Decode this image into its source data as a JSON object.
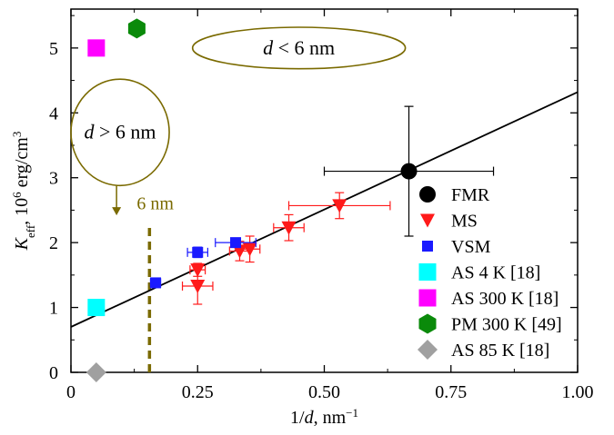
{
  "chart_data": {
    "type": "scatter",
    "title": "",
    "xlabel": {
      "main": "1/",
      "italic": "d",
      "unit": ", nm",
      "sup": "−1"
    },
    "ylabel": {
      "italic": "K",
      "sub": "eff",
      "unit": ", 10",
      "sup": "6",
      "unit2": " erg/cm",
      "sup2": "3"
    },
    "xlim": [
      0,
      1.0
    ],
    "ylim": [
      0,
      5.6
    ],
    "xticks": [
      {
        "v": 0,
        "label": "0"
      },
      {
        "v": 0.25,
        "label": "0.25"
      },
      {
        "v": 0.5,
        "label": "0.50"
      },
      {
        "v": 0.75,
        "label": "0.75"
      },
      {
        "v": 1.0,
        "label": "1.00"
      }
    ],
    "yticks": [
      {
        "v": 0,
        "label": "0"
      },
      {
        "v": 1,
        "label": "1"
      },
      {
        "v": 2,
        "label": "2"
      },
      {
        "v": 3,
        "label": "3"
      },
      {
        "v": 4,
        "label": "4"
      },
      {
        "v": 5,
        "label": "5"
      }
    ],
    "grid": false,
    "legend_position": "bottom-right",
    "series": [
      {
        "name": "FMR",
        "marker": "circle",
        "color": "#000000",
        "points": [
          {
            "x": 0.667,
            "y": 3.1,
            "xerr": 0.167,
            "yerr": 1.0
          }
        ]
      },
      {
        "name": "MS",
        "marker": "triangle-down",
        "color": "#ff1a1a",
        "points": [
          {
            "x": 0.25,
            "y": 1.33,
            "xerr": 0.03,
            "yerr": 0.28
          },
          {
            "x": 0.25,
            "y": 1.58,
            "xerr": 0.015,
            "yerr": 0.1
          },
          {
            "x": 0.333,
            "y": 1.87,
            "xerr": 0.02,
            "yerr": 0.15
          },
          {
            "x": 0.353,
            "y": 1.9,
            "xerr": 0.02,
            "yerr": 0.2
          },
          {
            "x": 0.43,
            "y": 2.23,
            "xerr": 0.03,
            "yerr": 0.2
          },
          {
            "x": 0.53,
            "y": 2.57,
            "xerr": 0.1,
            "yerr": 0.2
          }
        ]
      },
      {
        "name": "VSM",
        "marker": "square",
        "color": "#1a1aff",
        "points": [
          {
            "x": 0.167,
            "y": 1.38,
            "xerr": 0.01,
            "yerr": 0.05
          },
          {
            "x": 0.25,
            "y": 1.85,
            "xerr": 0.02,
            "yerr": 0.08
          },
          {
            "x": 0.325,
            "y": 2.0,
            "xerr": 0.04,
            "yerr": 0.05
          }
        ]
      },
      {
        "name": "AS 4 K [18]",
        "marker": "square-large",
        "color": "#00ffff",
        "points": [
          {
            "x": 0.05,
            "y": 1.0
          }
        ]
      },
      {
        "name": "AS 300 K [18]",
        "marker": "square-large",
        "color": "#ff00ff",
        "points": [
          {
            "x": 0.05,
            "y": 5.0
          }
        ]
      },
      {
        "name": "PM 300 K [49]",
        "marker": "hexagon",
        "color": "#0a8a0a",
        "points": [
          {
            "x": 0.13,
            "y": 5.3
          }
        ]
      },
      {
        "name": "AS 85 K [18]",
        "marker": "diamond",
        "color": "#a0a0a0",
        "points": [
          {
            "x": 0.05,
            "y": 0.0
          }
        ]
      }
    ],
    "fit_line": {
      "x1": 0,
      "y1": 0.7,
      "x2": 1.0,
      "y2": 4.32
    },
    "annotations": [
      {
        "type": "dashed-vline",
        "x": 0.155,
        "y_from": 0,
        "y_to": 2.3,
        "label": "6 nm",
        "color": "#7a6a00"
      },
      {
        "type": "ellipse",
        "cx": 0.45,
        "cy": 5.0,
        "rx": 0.21,
        "ry": 0.32,
        "label_italic": "d",
        "label_rest": " < 6 nm",
        "color": "#7a6a00"
      },
      {
        "type": "ellipse",
        "cx": 0.097,
        "cy": 3.7,
        "rx": 0.097,
        "ry": 0.82,
        "label_italic": "d",
        "label_rest": " > 6 nm",
        "color": "#7a6a00"
      },
      {
        "type": "arrow",
        "x": 0.09,
        "y_from": 2.88,
        "y_to": 2.42,
        "color": "#7a6a00"
      }
    ]
  }
}
